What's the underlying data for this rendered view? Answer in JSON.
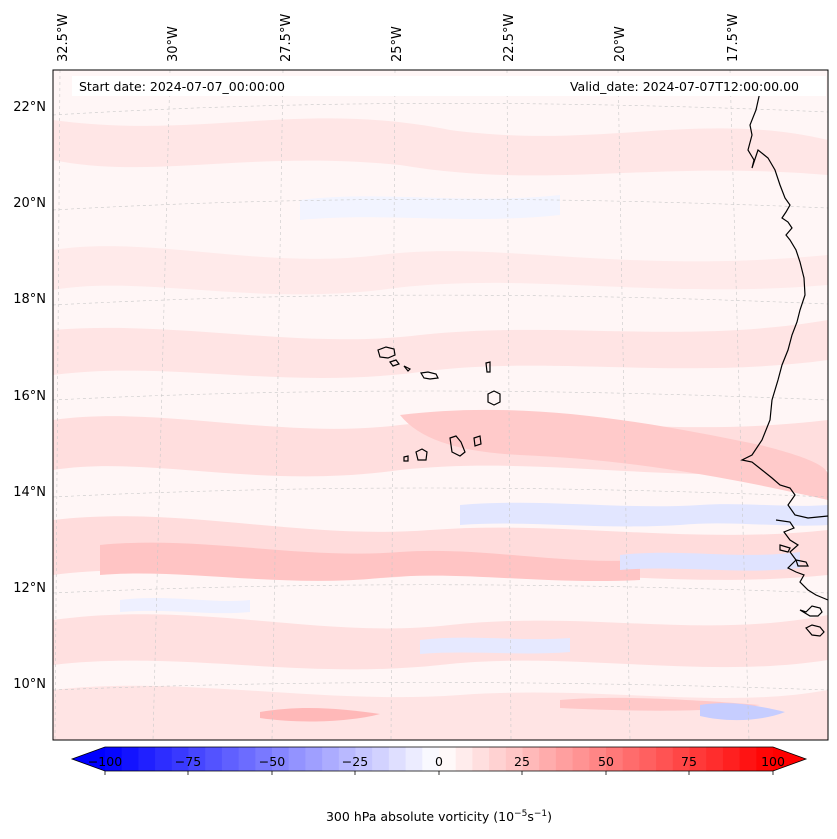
{
  "header": {
    "start_date": "Start date: 2024-07-07_00:00:00",
    "valid_date": "Valid_date: 2024-07-07T12:00:00.00"
  },
  "map": {
    "longitude_labels": [
      "32.5°W",
      "30°W",
      "27.5°W",
      "25°W",
      "22.5°W",
      "20°W",
      "17.5°W"
    ],
    "latitude_labels": [
      "22°N",
      "20°N",
      "18°N",
      "16°N",
      "14°N",
      "12°N",
      "10°N"
    ],
    "gridlines": true,
    "land_outline_color": "#000000",
    "field_colors": {
      "positive": "#ffd6d6",
      "positive_strong": "#ff9a9a",
      "negative": "#d6dcff",
      "negative_strong": "#9aa8ff"
    }
  },
  "colorbar": {
    "ticks": [
      "−100",
      "−75",
      "−50",
      "−25",
      "0",
      "25",
      "50",
      "75",
      "100"
    ],
    "min": -100,
    "max": 100,
    "label_main": "300 hPa absolute vorticity (10",
    "label_exp1": "−5",
    "label_mid": "s",
    "label_exp2": "−1",
    "label_end": ")",
    "color_min": "#0000ff",
    "color_mid": "#ffffff",
    "color_max": "#ff0000"
  }
}
